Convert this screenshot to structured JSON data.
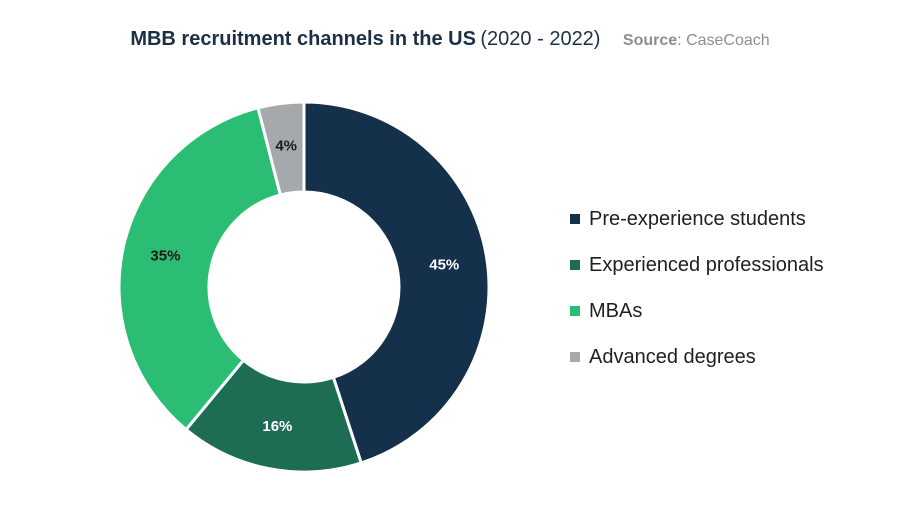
{
  "header": {
    "title": "MBB recruitment channels in the US",
    "years": "(2020 - 2022)",
    "source_label": "Source",
    "source_value": ": CaseCoach"
  },
  "chart_data": {
    "type": "pie",
    "donut": true,
    "title": "MBB recruitment channels in the US (2020 - 2022)",
    "legend_position": "right",
    "series": [
      {
        "name": "Pre-experience students",
        "value": 45,
        "label": "45%",
        "color": "#14304b",
        "label_color": "#ffffff"
      },
      {
        "name": "Experienced professionals",
        "value": 16,
        "label": "16%",
        "color": "#1d6d55",
        "label_color": "#ffffff"
      },
      {
        "name": "MBAs",
        "value": 35,
        "label": "35%",
        "color": "#2bbd73",
        "label_color": "#1a1a1a"
      },
      {
        "name": "Advanced degrees",
        "value": 4,
        "label": "4%",
        "color": "#a6a9ab",
        "label_color": "#1a1a1a"
      }
    ]
  }
}
